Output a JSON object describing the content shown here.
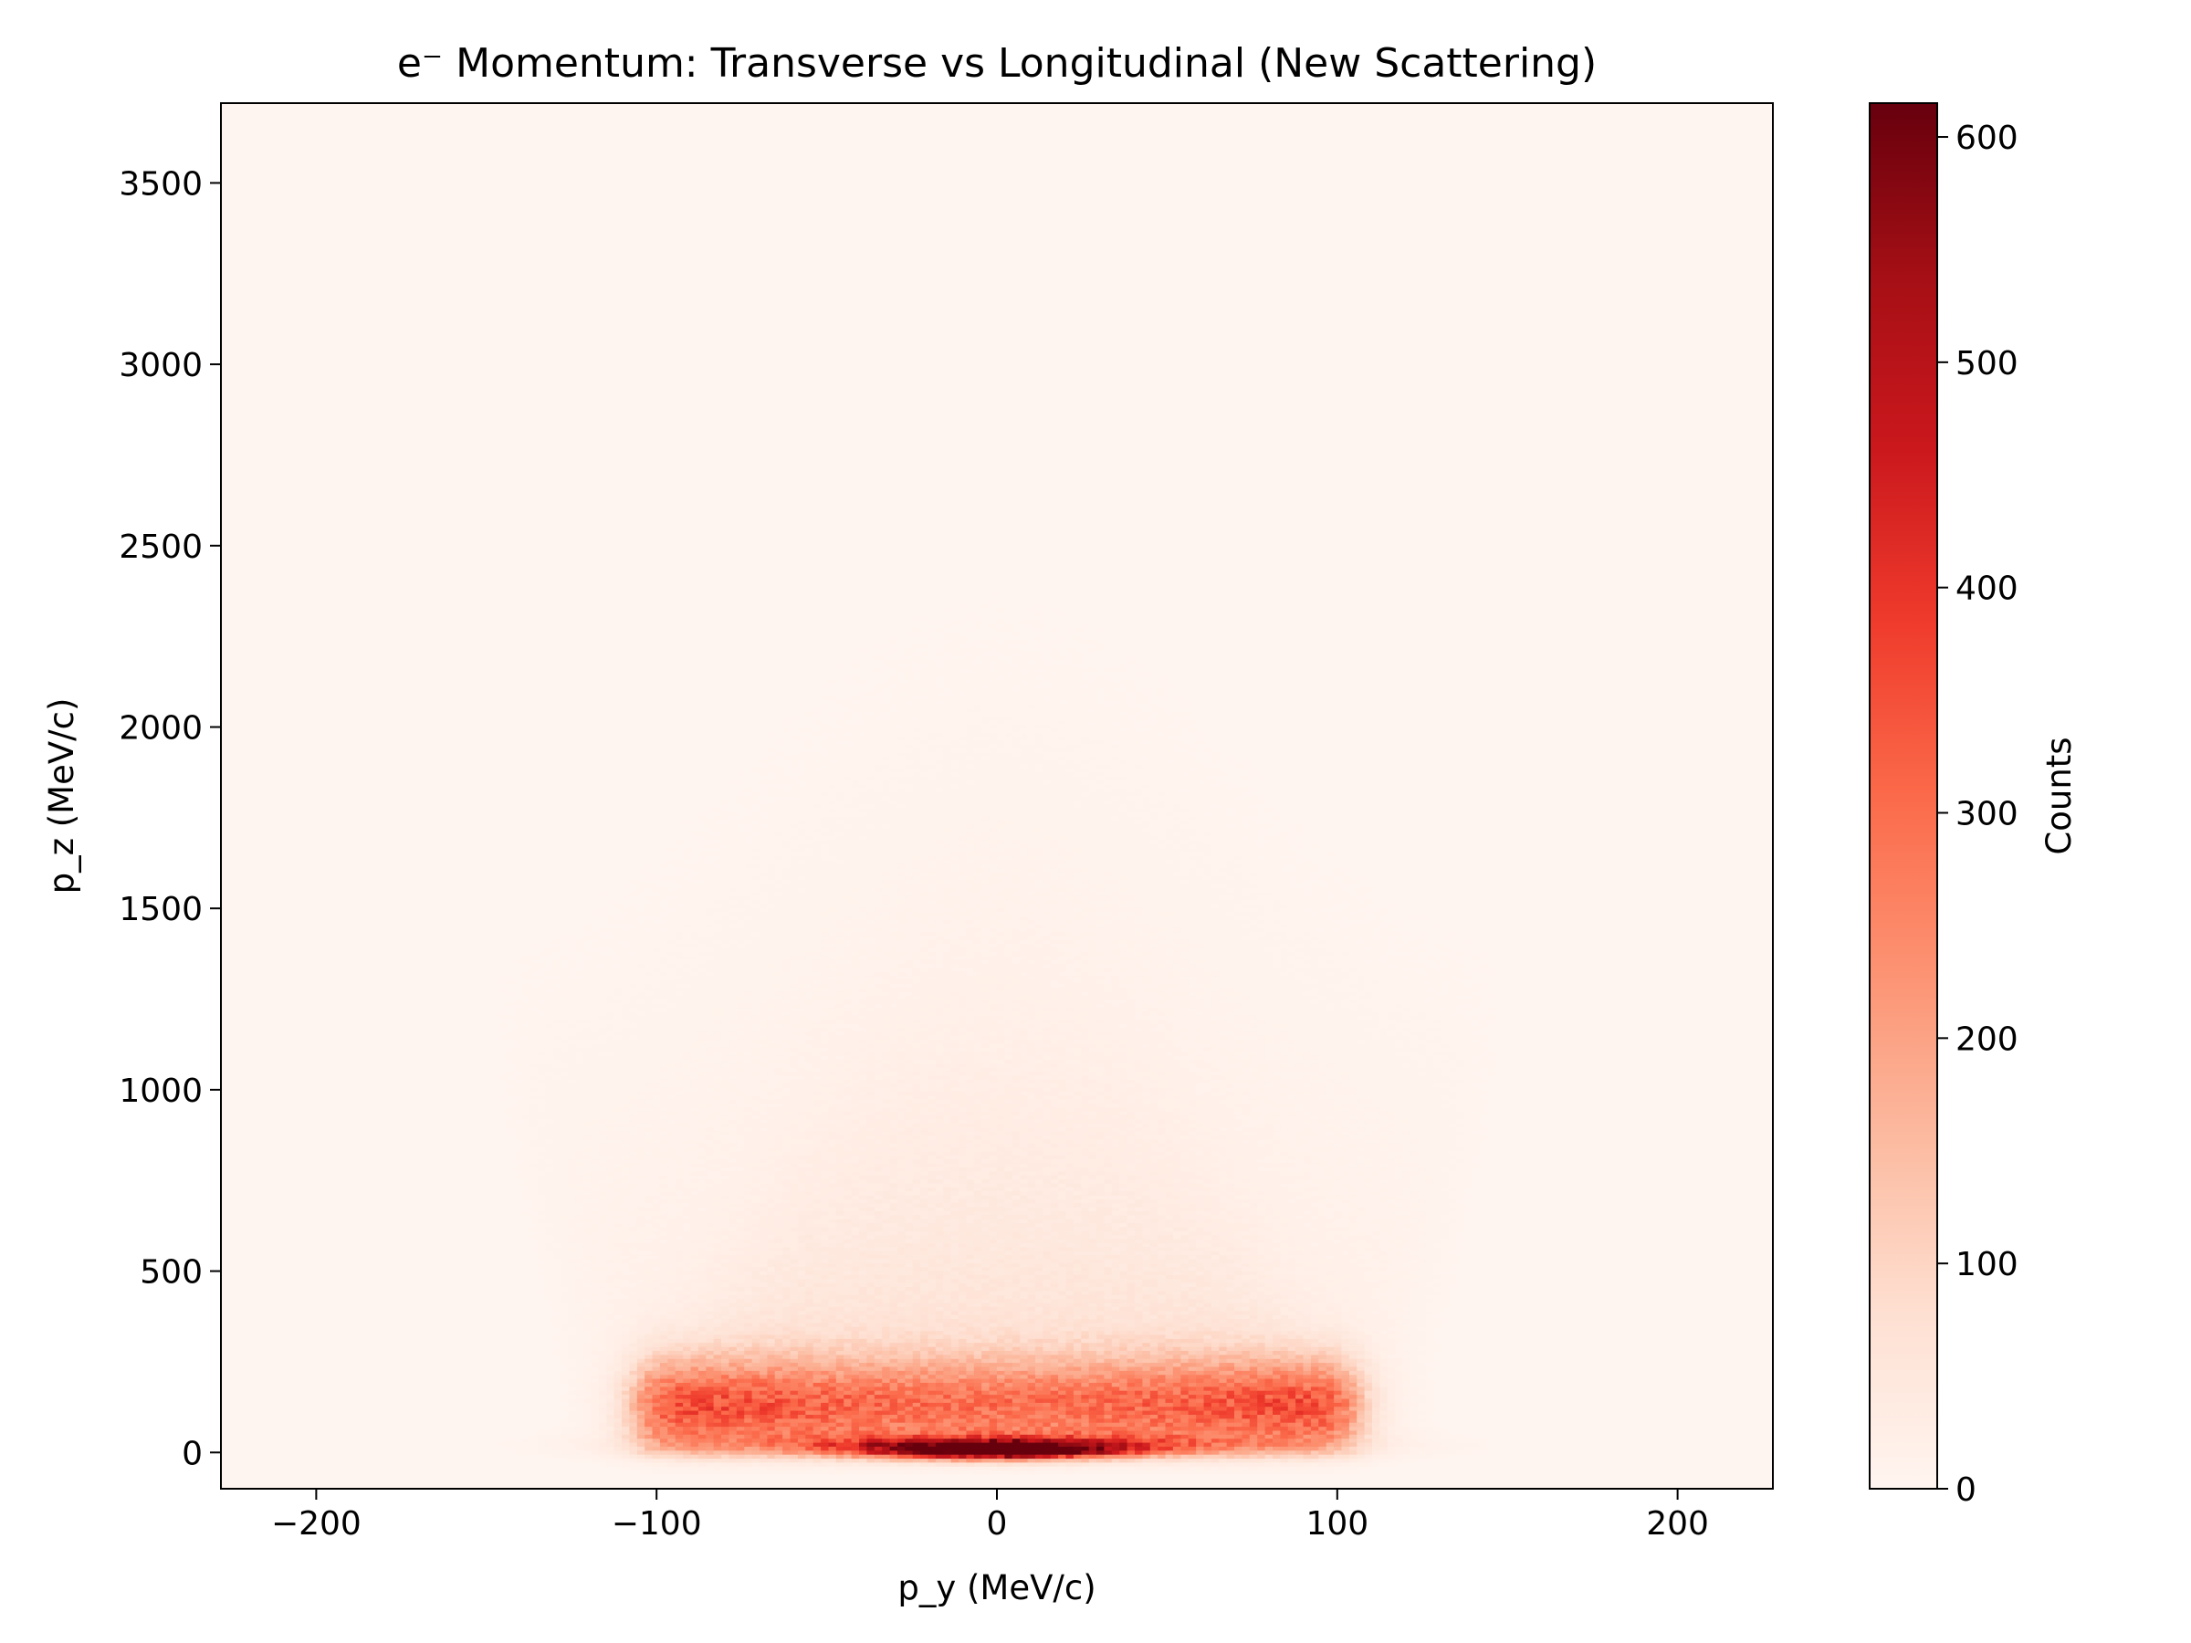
{
  "chart_data": {
    "type": "heatmap",
    "title": "e⁻ Momentum: Transverse vs Longitudinal (New Scattering)",
    "xlabel": "p_y (MeV/c)",
    "ylabel": "p_z (MeV/c)",
    "xlim": [
      -228,
      228
    ],
    "ylim": [
      -100,
      3720
    ],
    "x_ticks": [
      {
        "value": -200,
        "label": "−200"
      },
      {
        "value": -100,
        "label": "−100"
      },
      {
        "value": 0,
        "label": "0"
      },
      {
        "value": 100,
        "label": "100"
      },
      {
        "value": 200,
        "label": "200"
      }
    ],
    "y_ticks": [
      {
        "value": 0,
        "label": "0"
      },
      {
        "value": 500,
        "label": "500"
      },
      {
        "value": 1000,
        "label": "1000"
      },
      {
        "value": 1500,
        "label": "1500"
      },
      {
        "value": 2000,
        "label": "2000"
      },
      {
        "value": 2500,
        "label": "2500"
      },
      {
        "value": 3000,
        "label": "3000"
      },
      {
        "value": 3500,
        "label": "3500"
      }
    ],
    "colorbar": {
      "label": "Counts",
      "colormap": "Reds",
      "range": [
        0,
        615
      ],
      "ticks": [
        {
          "value": 0,
          "label": "0"
        },
        {
          "value": 100,
          "label": "100"
        },
        {
          "value": 200,
          "label": "200"
        },
        {
          "value": 300,
          "label": "300"
        },
        {
          "value": 400,
          "label": "400"
        },
        {
          "value": 500,
          "label": "500"
        },
        {
          "value": 600,
          "label": "600"
        }
      ]
    },
    "density_model": {
      "description_of_distribution": "counts concentrated near p_z≈0 across |p_y|<105, peak ~615 near p_y=0, p_z≈0; cone widening with p_z",
      "core_halfwidth_py": 105,
      "peak_count": 615,
      "band_count_py100": 320,
      "cone_halfwidth_at_pz0": 105,
      "cone_halfwidth_at_pz1500": 165
    },
    "grid": false,
    "legend": "none"
  }
}
